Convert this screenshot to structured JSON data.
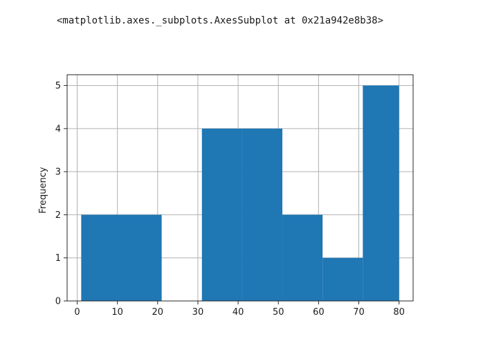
{
  "output": {
    "repr_text": "<matplotlib.axes._subplots.AxesSubplot at 0x21a942e8b38>"
  },
  "colors": {
    "bar": "#1f77b4",
    "grid": "#b0b0b0",
    "axes": "#262626",
    "background": "#ffffff"
  },
  "chart_data": {
    "type": "bar",
    "title": "",
    "xlabel": "",
    "ylabel": "Frequency",
    "grid": true,
    "xlim": [
      -2.5,
      83.5
    ],
    "ylim": [
      0,
      5.25
    ],
    "xticks": [
      0,
      10,
      20,
      30,
      40,
      50,
      60,
      70,
      80
    ],
    "yticks": [
      0,
      1,
      2,
      3,
      4,
      5
    ],
    "bins": [
      {
        "start": 1,
        "end": 11,
        "value": 2
      },
      {
        "start": 11,
        "end": 21,
        "value": 2
      },
      {
        "start": 21,
        "end": 31,
        "value": 0
      },
      {
        "start": 31,
        "end": 41,
        "value": 4
      },
      {
        "start": 41,
        "end": 51,
        "value": 4
      },
      {
        "start": 51,
        "end": 61,
        "value": 2
      },
      {
        "start": 61,
        "end": 71,
        "value": 1
      },
      {
        "start": 71,
        "end": 80,
        "value": 5
      }
    ]
  }
}
